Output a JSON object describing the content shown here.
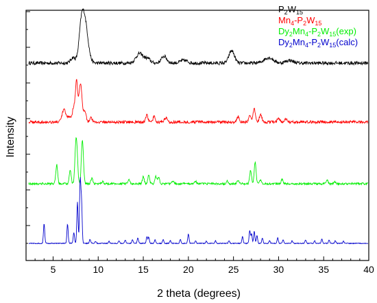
{
  "chart_data": {
    "type": "line",
    "xlabel": "2 theta (degrees)",
    "ylabel": "Intensity",
    "xlim": [
      2,
      40
    ],
    "x_ticks": [
      5,
      10,
      15,
      20,
      25,
      30,
      35,
      40
    ],
    "grid": false,
    "legend_position": "top-right",
    "series": [
      {
        "name": "P2W15",
        "legend": [
          {
            "t": "P"
          },
          {
            "t": "2",
            "sub": true
          },
          {
            "t": "W"
          },
          {
            "t": "15",
            "sub": true
          }
        ],
        "color": "#000000",
        "baseline": 92,
        "noise": 2.5,
        "peaks": [
          [
            7.2,
            8,
            0.25
          ],
          [
            8.1,
            35,
            0.25
          ],
          [
            8.5,
            62,
            0.35
          ],
          [
            14.6,
            14,
            0.4
          ],
          [
            15.5,
            6,
            0.3
          ],
          [
            17.3,
            10,
            0.3
          ],
          [
            19.5,
            4,
            0.4
          ],
          [
            24.8,
            18,
            0.3
          ],
          [
            28.9,
            8,
            0.5
          ],
          [
            31.2,
            4,
            0.4
          ]
        ]
      },
      {
        "name": "Mn4-P2W15",
        "legend": [
          {
            "t": "Mn"
          },
          {
            "t": "4",
            "sub": true
          },
          {
            "t": "-P"
          },
          {
            "t": "2",
            "sub": true
          },
          {
            "t": "W"
          },
          {
            "t": "15",
            "sub": true
          }
        ],
        "color": "#ff0000",
        "baseline": 178,
        "noise": 2,
        "peaks": [
          [
            6.2,
            18,
            0.2
          ],
          [
            6.8,
            8,
            0.2
          ],
          [
            7.3,
            22,
            0.15
          ],
          [
            7.6,
            57,
            0.12
          ],
          [
            7.9,
            30,
            0.12
          ],
          [
            8.1,
            45,
            0.12
          ],
          [
            8.5,
            18,
            0.15
          ],
          [
            9.2,
            6,
            0.15
          ],
          [
            15.4,
            10,
            0.12
          ],
          [
            16.2,
            8,
            0.12
          ],
          [
            17.5,
            6,
            0.15
          ],
          [
            25.5,
            8,
            0.12
          ],
          [
            26.8,
            10,
            0.12
          ],
          [
            27.3,
            20,
            0.12
          ],
          [
            28.0,
            10,
            0.15
          ],
          [
            30.0,
            5,
            0.15
          ],
          [
            30.8,
            4,
            0.15
          ]
        ]
      },
      {
        "name": "Dy2Mn4-P2W15(exp)",
        "legend": [
          {
            "t": "Dy"
          },
          {
            "t": "2",
            "sub": true
          },
          {
            "t": "Mn"
          },
          {
            "t": "4",
            "sub": true
          },
          {
            "t": "-P"
          },
          {
            "t": "2",
            "sub": true
          },
          {
            "t": "W"
          },
          {
            "t": "15",
            "sub": true
          },
          {
            "t": "(exp)"
          }
        ],
        "color": "#00ee00",
        "baseline": 268,
        "noise": 1.5,
        "peaks": [
          [
            5.4,
            28,
            0.1
          ],
          [
            6.9,
            20,
            0.1
          ],
          [
            7.5,
            48,
            0.1
          ],
          [
            7.65,
            40,
            0.1
          ],
          [
            8.2,
            38,
            0.1
          ],
          [
            8.3,
            35,
            0.1
          ],
          [
            9.3,
            8,
            0.1
          ],
          [
            10.5,
            3,
            0.1
          ],
          [
            13.4,
            6,
            0.1
          ],
          [
            15.0,
            10,
            0.1
          ],
          [
            15.6,
            12,
            0.1
          ],
          [
            16.4,
            11,
            0.1
          ],
          [
            16.7,
            9,
            0.1
          ],
          [
            18.3,
            4,
            0.1
          ],
          [
            20.8,
            4,
            0.1
          ],
          [
            24.3,
            5,
            0.1
          ],
          [
            25.5,
            5,
            0.1
          ],
          [
            26.9,
            20,
            0.1
          ],
          [
            27.4,
            32,
            0.1
          ],
          [
            28.0,
            6,
            0.1
          ],
          [
            30.4,
            7,
            0.1
          ],
          [
            35.4,
            5,
            0.1
          ],
          [
            36.2,
            3,
            0.1
          ]
        ]
      },
      {
        "name": "Dy2Mn4-P2W15(calc)",
        "legend": [
          {
            "t": "Dy"
          },
          {
            "t": "2",
            "sub": true
          },
          {
            "t": "Mn"
          },
          {
            "t": "4",
            "sub": true
          },
          {
            "t": "-P"
          },
          {
            "t": "2",
            "sub": true
          },
          {
            "t": "W"
          },
          {
            "t": "15",
            "sub": true
          },
          {
            "t": "(calc)"
          }
        ],
        "color": "#0000cc",
        "baseline": 355,
        "noise": 0.6,
        "peaks": [
          [
            4.0,
            29,
            0.07
          ],
          [
            6.6,
            28,
            0.07
          ],
          [
            7.3,
            16,
            0.07
          ],
          [
            7.7,
            60,
            0.07
          ],
          [
            8.0,
            90,
            0.07
          ],
          [
            8.15,
            60,
            0.07
          ],
          [
            9.1,
            6,
            0.07
          ],
          [
            9.7,
            3,
            0.07
          ],
          [
            11.2,
            3,
            0.07
          ],
          [
            12.3,
            4,
            0.07
          ],
          [
            13.0,
            5,
            0.07
          ],
          [
            13.8,
            6,
            0.07
          ],
          [
            14.4,
            8,
            0.07
          ],
          [
            15.4,
            10,
            0.07
          ],
          [
            15.6,
            9,
            0.07
          ],
          [
            16.3,
            5,
            0.07
          ],
          [
            17.2,
            6,
            0.07
          ],
          [
            18.0,
            4,
            0.07
          ],
          [
            19.1,
            6,
            0.07
          ],
          [
            20.0,
            14,
            0.07
          ],
          [
            20.8,
            4,
            0.07
          ],
          [
            22.0,
            3,
            0.07
          ],
          [
            23.0,
            4,
            0.07
          ],
          [
            24.5,
            4,
            0.07
          ],
          [
            26.0,
            10,
            0.07
          ],
          [
            26.8,
            18,
            0.07
          ],
          [
            27.0,
            14,
            0.07
          ],
          [
            27.3,
            18,
            0.07
          ],
          [
            27.6,
            12,
            0.07
          ],
          [
            28.2,
            8,
            0.07
          ],
          [
            29.0,
            4,
            0.07
          ],
          [
            29.9,
            8,
            0.07
          ],
          [
            30.5,
            5,
            0.07
          ],
          [
            31.5,
            4,
            0.07
          ],
          [
            33.0,
            5,
            0.07
          ],
          [
            34.0,
            4,
            0.07
          ],
          [
            34.8,
            6,
            0.07
          ],
          [
            35.6,
            5,
            0.07
          ],
          [
            36.3,
            4,
            0.07
          ],
          [
            37.2,
            3,
            0.07
          ]
        ]
      }
    ]
  }
}
